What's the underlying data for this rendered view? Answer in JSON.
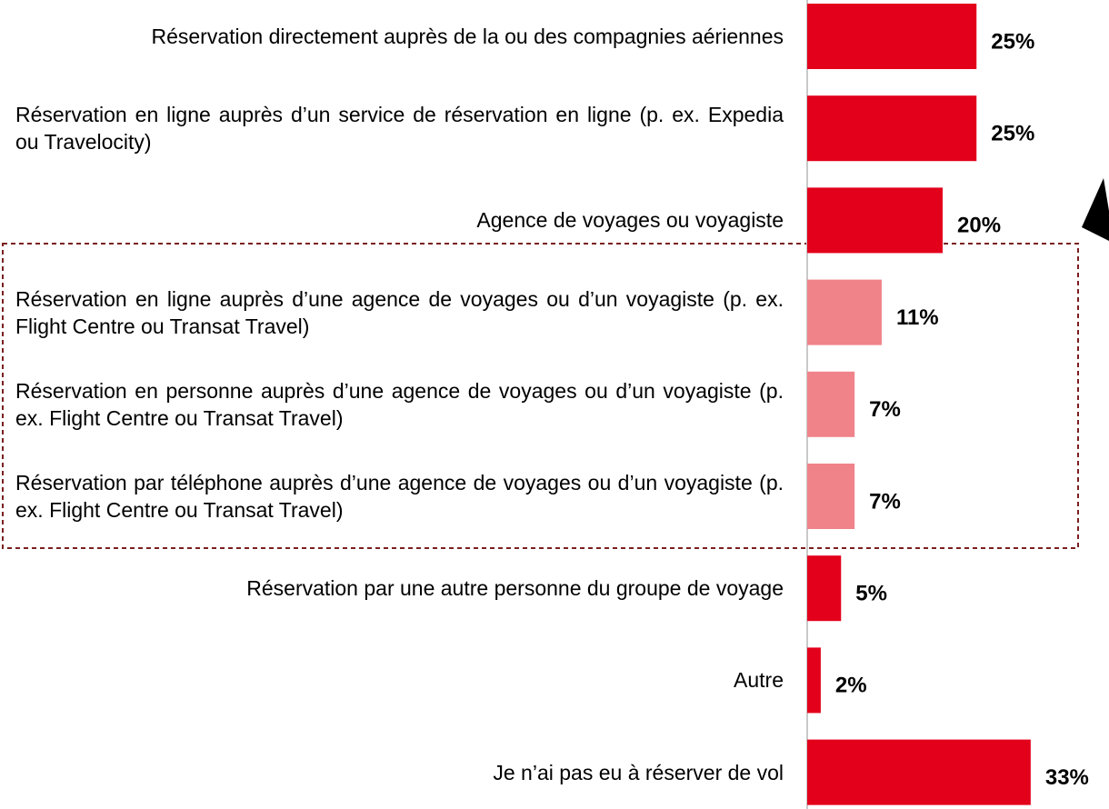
{
  "chart_data": {
    "type": "bar",
    "orientation": "horizontal",
    "categories": [
      "Réservation directement auprès de la ou des compagnies aériennes",
      "Réservation en ligne auprès d’un service de réservation en ligne (p. ex. Expedia ou Travelocity)",
      "Agence de voyages ou voyagiste",
      "Réservation en ligne auprès d’une agence de voyages ou d’un voyagiste (p. ex. Flight Centre ou Transat Travel)",
      "Réservation en personne auprès d’une agence de voyages ou d’un voyagiste (p. ex. Flight Centre ou Transat Travel)",
      "Réservation par téléphone auprès d’une agence de voyages ou d’un voyagiste (p. ex. Flight Centre ou Transat Travel)",
      "Réservation par une autre personne du groupe de voyage",
      "Autre",
      "Je n’ai pas eu à réserver de vol"
    ],
    "values": [
      25,
      25,
      20,
      11,
      7,
      7,
      5,
      2,
      33
    ],
    "value_labels": [
      "25%",
      "25%",
      "20%",
      "11%",
      "7%",
      "7%",
      "5%",
      "2%",
      "33%"
    ],
    "colors": [
      "#e3001b",
      "#e3001b",
      "#e3001b",
      "#f0838a",
      "#f0838a",
      "#f0838a",
      "#e3001b",
      "#e3001b",
      "#e3001b"
    ]
  }
}
